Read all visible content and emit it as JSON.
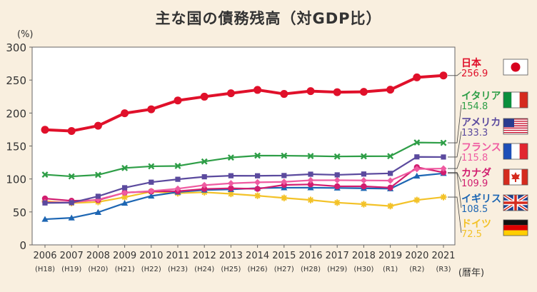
{
  "title": "主な国の債務残高（対GDP比）",
  "chart_data": {
    "type": "line",
    "y_unit": "(%)",
    "x_unit": "(暦年)",
    "ylim": [
      0,
      300
    ],
    "y_ticks": [
      0,
      50,
      100,
      150,
      200,
      250,
      300
    ],
    "grid": false,
    "categories": [
      "2006",
      "2007",
      "2008",
      "2009",
      "2010",
      "2011",
      "2012",
      "2013",
      "2014",
      "2015",
      "2016",
      "2017",
      "2018",
      "2019",
      "2020",
      "2021"
    ],
    "era_labels": [
      "(H18)",
      "(H19)",
      "(H20)",
      "(H21)",
      "(H22)",
      "(H23)",
      "(H24)",
      "(H25)",
      "(H26)",
      "(H27)",
      "(H28)",
      "(H29)",
      "(H30)",
      "(R1)",
      "(R2)",
      "(R3)"
    ],
    "series": [
      {
        "name": "日本",
        "label_value": "256.9",
        "color": "#e0102a",
        "marker": "circle",
        "flag": "japan",
        "values": [
          174.6,
          172.8,
          180.7,
          199.7,
          205.7,
          219.1,
          224.8,
          230.0,
          235.1,
          229.0,
          233.3,
          231.7,
          232.2,
          235.4,
          254.1,
          256.9
        ]
      },
      {
        "name": "イタリア",
        "label_value": "154.8",
        "color": "#2e9e47",
        "marker": "x",
        "flag": "italy",
        "values": [
          106.6,
          103.9,
          106.2,
          116.6,
          119.2,
          119.7,
          126.5,
          132.5,
          135.4,
          135.3,
          134.8,
          134.1,
          134.4,
          134.6,
          155.3,
          154.8
        ]
      },
      {
        "name": "アメリカ",
        "label_value": "133.3",
        "color": "#5b4a9e",
        "marker": "square",
        "flag": "usa",
        "values": [
          63.6,
          64.0,
          73.7,
          86.7,
          95.1,
          99.5,
          103.3,
          104.9,
          104.8,
          105.2,
          107.2,
          106.2,
          107.5,
          108.5,
          133.5,
          133.3
        ]
      },
      {
        "name": "フランス",
        "label_value": "115.8",
        "color": "#ef5ba1",
        "marker": "diamond",
        "flag": "france",
        "values": [
          64.6,
          64.4,
          68.8,
          79.0,
          81.7,
          85.2,
          90.6,
          93.4,
          94.9,
          95.6,
          98.0,
          98.1,
          97.8,
          97.5,
          115.1,
          115.8
        ]
      },
      {
        "name": "カナダ",
        "label_value": "109.9",
        "color": "#d11d6f",
        "marker": "circle",
        "flag": "canada",
        "values": [
          70.3,
          66.9,
          67.9,
          79.3,
          81.1,
          81.5,
          84.8,
          85.8,
          85.0,
          91.0,
          91.7,
          88.8,
          88.8,
          86.8,
          117.8,
          109.9
        ]
      },
      {
        "name": "イギリス",
        "label_value": "108.5",
        "color": "#1d66b3",
        "marker": "triangle",
        "flag": "uk",
        "values": [
          38.9,
          41.0,
          49.4,
          63.3,
          74.2,
          80.1,
          83.2,
          84.2,
          86.1,
          86.7,
          86.8,
          86.3,
          85.8,
          85.2,
          104.5,
          108.5
        ]
      },
      {
        "name": "ドイツ",
        "label_value": "72.5",
        "color": "#f3c228",
        "marker": "star",
        "flag": "germany",
        "values": [
          66.3,
          63.5,
          65.1,
          72.4,
          80.8,
          78.4,
          79.8,
          77.4,
          74.6,
          71.2,
          68.1,
          64.1,
          61.7,
          58.9,
          68.0,
          72.5
        ]
      }
    ]
  }
}
